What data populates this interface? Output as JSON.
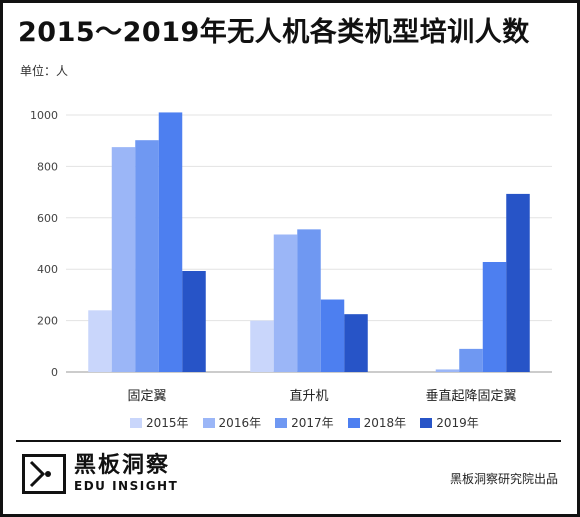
{
  "title": "2015～2019年无人机各类机型培训人数",
  "unit_label": "单位：人",
  "logo": {
    "cn": "黑板洞察",
    "en": "EDU INSIGHT"
  },
  "source": "黑板洞察研究院出品",
  "chart_data": {
    "type": "bar",
    "title": "2015～2019年无人机各类机型培训人数",
    "ylabel": "单位：人",
    "xlabel": "",
    "categories": [
      "固定翼",
      "直升机",
      "垂直起降固定翼"
    ],
    "ylim": [
      0,
      1000
    ],
    "yticks": [
      0,
      200,
      400,
      600,
      800,
      1000
    ],
    "grid": true,
    "legend_position": "bottom",
    "series": [
      {
        "name": "2015年",
        "color": "#c9d6fb",
        "values": [
          240,
          200,
          0
        ]
      },
      {
        "name": "2016年",
        "color": "#9bb6f7",
        "values": [
          875,
          535,
          10
        ]
      },
      {
        "name": "2017年",
        "color": "#6f98f2",
        "values": [
          902,
          555,
          90
        ]
      },
      {
        "name": "2018年",
        "color": "#4d7ff0",
        "values": [
          1010,
          282,
          428
        ]
      },
      {
        "name": "2019年",
        "color": "#2754c7",
        "values": [
          393,
          225,
          693
        ]
      }
    ]
  }
}
